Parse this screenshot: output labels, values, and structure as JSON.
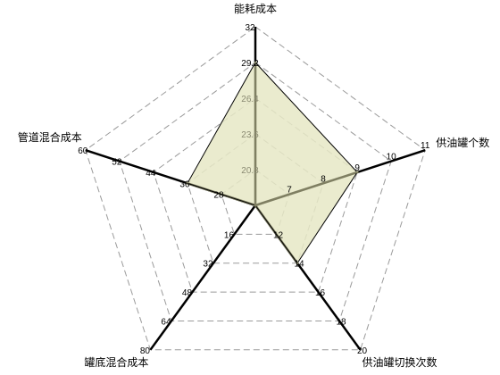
{
  "chart_data": {
    "type": "radar",
    "axes": [
      {
        "name": "能耗成本",
        "min": 18,
        "max": 32,
        "ticks": [
          "20.8",
          "23.6",
          "26.4",
          "29.2",
          "32"
        ],
        "label_color_inner": true
      },
      {
        "name": "供油罐个数",
        "min": 6,
        "max": 11,
        "ticks": [
          "7",
          "8",
          "9",
          "10",
          "11"
        ],
        "label_color_inner": true
      },
      {
        "name": "供油罐切换次数",
        "min": 10,
        "max": 20,
        "ticks": [
          "12",
          "14",
          "16",
          "18",
          "20"
        ],
        "label_color_inner": true
      },
      {
        "name": "罐底混合成本",
        "min": 0,
        "max": 80,
        "ticks": [
          "16",
          "32",
          "48",
          "64",
          "80"
        ],
        "label_color_inner": false
      },
      {
        "name": "管道混合成本",
        "min": 20,
        "max": 60,
        "ticks": [
          "28",
          "36",
          "44",
          "52",
          "60"
        ],
        "label_color_inner": true
      }
    ],
    "series": [
      {
        "values": [
          29.2,
          9,
          14,
          0,
          36
        ]
      }
    ],
    "grid": true,
    "colors": {
      "fill": "#e6e8c6",
      "fill_opacity": 0.85,
      "stroke": "#7f7f62",
      "axis": "#000000",
      "grid": "#9a9a9a",
      "inner_tick": "#8a8a72"
    }
  }
}
